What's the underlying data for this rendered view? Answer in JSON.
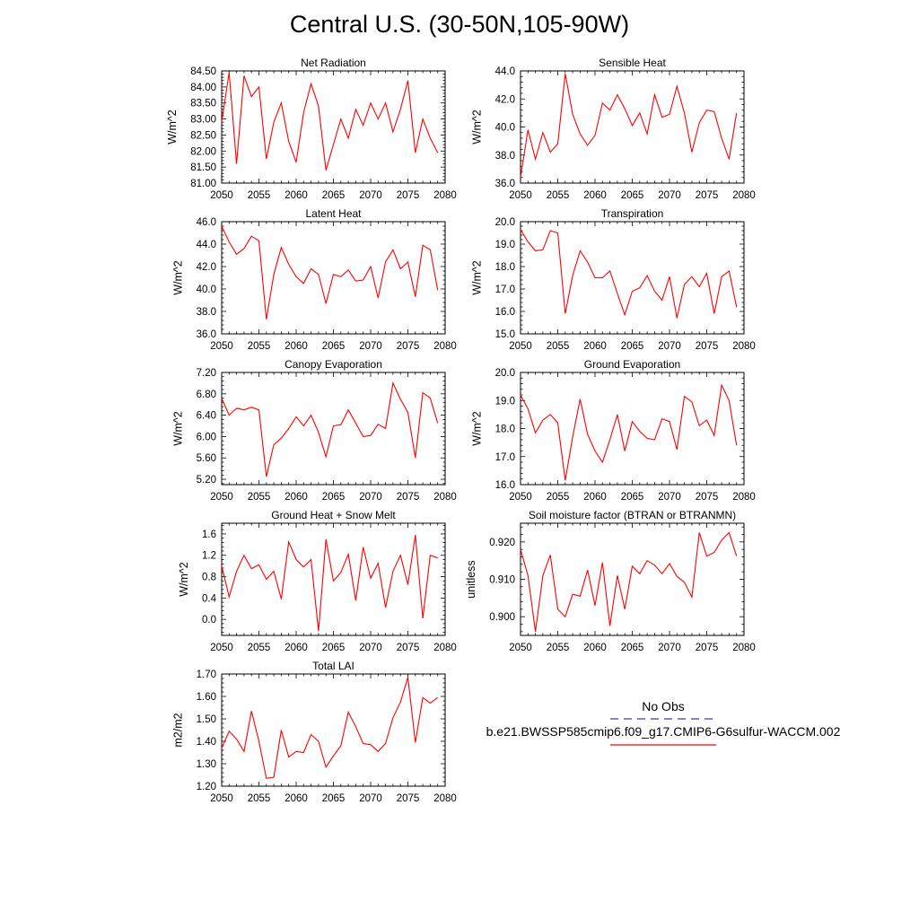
{
  "page": {
    "title": "Central U.S. (30-50N,105-90W)"
  },
  "legend": {
    "items": [
      {
        "label": "No Obs",
        "color": "#3b3bb8",
        "style": "dashed"
      },
      {
        "label": "b.e21.BWSSP585cmip6.f09_g17.CMIP6-G6sulfur-WACCM.002",
        "color": "#ff0000",
        "style": "solid"
      }
    ]
  },
  "chart_data": [
    {
      "type": "line",
      "title": "Net Radiation",
      "ylabel": "W/m^2",
      "xlim": [
        2050,
        2080
      ],
      "ylim": [
        81.0,
        84.5
      ],
      "xticks": [
        2050,
        2055,
        2060,
        2065,
        2070,
        2075,
        2080
      ],
      "yticks": [
        "81.00",
        "81.50",
        "82.00",
        "82.50",
        "83.00",
        "83.50",
        "84.00",
        "84.50"
      ],
      "series": [
        {
          "color": "#ff0000",
          "x": [
            2050,
            2051,
            2052,
            2053,
            2054,
            2055,
            2056,
            2057,
            2058,
            2059,
            2060,
            2061,
            2062,
            2063,
            2064,
            2065,
            2066,
            2067,
            2068,
            2069,
            2070,
            2071,
            2072,
            2073,
            2074,
            2075,
            2076,
            2077,
            2078,
            2079
          ],
          "y": [
            82.9,
            84.45,
            81.6,
            84.35,
            83.7,
            84.0,
            81.75,
            82.9,
            83.5,
            82.3,
            81.65,
            83.2,
            84.1,
            83.4,
            81.4,
            82.2,
            83.0,
            82.4,
            83.3,
            82.8,
            83.5,
            83.0,
            83.5,
            82.6,
            83.3,
            84.2,
            81.95,
            83.0,
            82.4,
            81.95
          ]
        }
      ]
    },
    {
      "type": "line",
      "title": "Sensible Heat",
      "ylabel": "W/m^2",
      "xlim": [
        2050,
        2080
      ],
      "ylim": [
        36.0,
        44.0
      ],
      "xticks": [
        2050,
        2055,
        2060,
        2065,
        2070,
        2075,
        2080
      ],
      "yticks": [
        "36.0",
        "38.0",
        "40.0",
        "42.0",
        "44.0"
      ],
      "series": [
        {
          "color": "#ff0000",
          "x": [
            2050,
            2051,
            2052,
            2053,
            2054,
            2055,
            2056,
            2057,
            2058,
            2059,
            2060,
            2061,
            2062,
            2063,
            2064,
            2065,
            2066,
            2067,
            2068,
            2069,
            2070,
            2071,
            2072,
            2073,
            2074,
            2075,
            2076,
            2077,
            2078,
            2079
          ],
          "y": [
            36.4,
            39.8,
            37.7,
            39.6,
            38.2,
            38.8,
            43.8,
            40.9,
            39.5,
            38.7,
            39.4,
            41.7,
            41.2,
            42.3,
            41.3,
            40.1,
            41.0,
            39.5,
            42.3,
            40.7,
            40.9,
            42.9,
            41.0,
            38.2,
            40.3,
            41.2,
            41.1,
            39.2,
            37.7,
            41.0
          ]
        }
      ]
    },
    {
      "type": "line",
      "title": "Latent Heat",
      "ylabel": "W/m^2",
      "xlim": [
        2050,
        2080
      ],
      "ylim": [
        36.0,
        46.0
      ],
      "xticks": [
        2050,
        2055,
        2060,
        2065,
        2070,
        2075,
        2080
      ],
      "yticks": [
        "36.0",
        "38.0",
        "40.0",
        "42.0",
        "44.0",
        "46.0"
      ],
      "series": [
        {
          "color": "#ff0000",
          "x": [
            2050,
            2051,
            2052,
            2053,
            2054,
            2055,
            2056,
            2057,
            2058,
            2059,
            2060,
            2061,
            2062,
            2063,
            2064,
            2065,
            2066,
            2067,
            2068,
            2069,
            2070,
            2071,
            2072,
            2073,
            2074,
            2075,
            2076,
            2077,
            2078,
            2079
          ],
          "y": [
            45.6,
            44.2,
            43.1,
            43.6,
            44.7,
            44.3,
            37.3,
            41.3,
            43.7,
            42.2,
            41.1,
            40.5,
            41.8,
            41.3,
            38.7,
            41.3,
            41.1,
            41.7,
            40.7,
            40.8,
            42.0,
            39.2,
            42.4,
            43.5,
            41.8,
            42.4,
            39.3,
            43.9,
            43.5,
            39.9
          ]
        }
      ]
    },
    {
      "type": "line",
      "title": "Transpiration",
      "ylabel": "W/m^2",
      "xlim": [
        2050,
        2080
      ],
      "ylim": [
        15.0,
        20.0
      ],
      "xticks": [
        2050,
        2055,
        2060,
        2065,
        2070,
        2075,
        2080
      ],
      "yticks": [
        "15.0",
        "16.0",
        "17.0",
        "18.0",
        "19.0",
        "20.0"
      ],
      "series": [
        {
          "color": "#ff0000",
          "x": [
            2050,
            2051,
            2052,
            2053,
            2054,
            2055,
            2056,
            2057,
            2058,
            2059,
            2060,
            2061,
            2062,
            2063,
            2064,
            2065,
            2066,
            2067,
            2068,
            2069,
            2070,
            2071,
            2072,
            2073,
            2074,
            2075,
            2076,
            2077,
            2078,
            2079
          ],
          "y": [
            19.65,
            19.1,
            18.7,
            18.75,
            19.6,
            19.5,
            15.9,
            17.6,
            18.7,
            18.2,
            17.5,
            17.5,
            17.8,
            16.8,
            15.85,
            16.9,
            17.05,
            17.6,
            16.9,
            16.5,
            17.55,
            15.7,
            17.2,
            17.55,
            17.1,
            17.7,
            15.9,
            17.55,
            17.8,
            16.2
          ]
        }
      ]
    },
    {
      "type": "line",
      "title": "Canopy Evaporation",
      "ylabel": "W/m^2",
      "xlim": [
        2050,
        2080
      ],
      "ylim": [
        5.1,
        7.2
      ],
      "xticks": [
        2050,
        2055,
        2060,
        2065,
        2070,
        2075,
        2080
      ],
      "yticks": [
        "5.20",
        "5.60",
        "6.00",
        "6.40",
        "6.80",
        "7.20"
      ],
      "series": [
        {
          "color": "#ff0000",
          "x": [
            2050,
            2051,
            2052,
            2053,
            2054,
            2055,
            2056,
            2057,
            2058,
            2059,
            2060,
            2061,
            2062,
            2063,
            2064,
            2065,
            2066,
            2067,
            2068,
            2069,
            2070,
            2071,
            2072,
            2073,
            2074,
            2075,
            2076,
            2077,
            2078,
            2079
          ],
          "y": [
            6.72,
            6.4,
            6.53,
            6.5,
            6.55,
            6.5,
            5.25,
            5.85,
            5.97,
            6.15,
            6.37,
            6.2,
            6.4,
            6.08,
            5.62,
            6.2,
            6.22,
            6.5,
            6.25,
            6.0,
            6.02,
            6.23,
            6.15,
            7.0,
            6.7,
            6.45,
            5.6,
            6.82,
            6.72,
            6.25
          ]
        }
      ]
    },
    {
      "type": "line",
      "title": "Ground Evaporation",
      "ylabel": "W/m^2",
      "xlim": [
        2050,
        2080
      ],
      "ylim": [
        16.0,
        20.0
      ],
      "xticks": [
        2050,
        2055,
        2060,
        2065,
        2070,
        2075,
        2080
      ],
      "yticks": [
        "16.0",
        "17.0",
        "18.0",
        "19.0",
        "20.0"
      ],
      "series": [
        {
          "color": "#ff0000",
          "x": [
            2050,
            2051,
            2052,
            2053,
            2054,
            2055,
            2056,
            2057,
            2058,
            2059,
            2060,
            2061,
            2062,
            2063,
            2064,
            2065,
            2066,
            2067,
            2068,
            2069,
            2070,
            2071,
            2072,
            2073,
            2074,
            2075,
            2076,
            2077,
            2078,
            2079
          ],
          "y": [
            19.2,
            18.7,
            17.85,
            18.3,
            18.5,
            18.2,
            16.15,
            17.7,
            19.05,
            17.8,
            17.2,
            16.8,
            17.6,
            18.5,
            17.2,
            18.25,
            17.9,
            17.65,
            17.6,
            18.35,
            18.25,
            17.25,
            19.15,
            18.95,
            18.1,
            18.3,
            17.75,
            19.55,
            19.0,
            17.4
          ]
        }
      ]
    },
    {
      "type": "line",
      "title": "Ground Heat + Snow Melt",
      "ylabel": "W/m^2",
      "xlim": [
        2050,
        2080
      ],
      "ylim": [
        -0.3,
        1.8
      ],
      "xticks": [
        2050,
        2055,
        2060,
        2065,
        2070,
        2075,
        2080
      ],
      "yticks": [
        "0.0",
        "0.4",
        "0.8",
        "1.2",
        "1.6"
      ],
      "series": [
        {
          "color": "#ff0000",
          "x": [
            2050,
            2051,
            2052,
            2053,
            2054,
            2055,
            2056,
            2057,
            2058,
            2059,
            2060,
            2061,
            2062,
            2063,
            2064,
            2065,
            2066,
            2067,
            2068,
            2069,
            2070,
            2071,
            2072,
            2073,
            2074,
            2075,
            2076,
            2077,
            2078,
            2079
          ],
          "y": [
            1.0,
            0.42,
            0.9,
            1.2,
            0.95,
            1.02,
            0.75,
            0.9,
            0.38,
            1.45,
            1.12,
            0.98,
            1.12,
            -0.22,
            1.5,
            0.72,
            0.88,
            1.22,
            0.35,
            1.35,
            0.77,
            1.05,
            0.22,
            0.9,
            1.2,
            0.65,
            1.58,
            0.02,
            1.2,
            1.15
          ]
        }
      ]
    },
    {
      "type": "line",
      "title": "Soil moisture factor (BTRAN or BTRANMN)",
      "ylabel": "unitless",
      "xlim": [
        2050,
        2080
      ],
      "ylim": [
        0.895,
        0.925
      ],
      "xticks": [
        2050,
        2055,
        2060,
        2065,
        2070,
        2075,
        2080
      ],
      "yticks": [
        "0.900",
        "0.910",
        "0.920"
      ],
      "series": [
        {
          "color": "#ff0000",
          "x": [
            2050,
            2051,
            2052,
            2053,
            2054,
            2055,
            2056,
            2057,
            2058,
            2059,
            2060,
            2061,
            2062,
            2063,
            2064,
            2065,
            2066,
            2067,
            2068,
            2069,
            2070,
            2071,
            2072,
            2073,
            2074,
            2075,
            2076,
            2077,
            2078,
            2079
          ],
          "y": [
            0.918,
            0.911,
            0.896,
            0.911,
            0.9165,
            0.902,
            0.9,
            0.906,
            0.9055,
            0.9125,
            0.903,
            0.9145,
            0.8975,
            0.911,
            0.902,
            0.9135,
            0.9115,
            0.915,
            0.9138,
            0.9115,
            0.9142,
            0.9108,
            0.9092,
            0.9052,
            0.9225,
            0.9162,
            0.9172,
            0.9205,
            0.9225,
            0.9162
          ]
        }
      ]
    },
    {
      "type": "line",
      "title": "Total LAI",
      "ylabel": "m2/m2",
      "xlim": [
        2050,
        2080
      ],
      "ylim": [
        1.2,
        1.7
      ],
      "xticks": [
        2050,
        2055,
        2060,
        2065,
        2070,
        2075,
        2080
      ],
      "yticks": [
        "1.20",
        "1.30",
        "1.40",
        "1.50",
        "1.60",
        "1.70"
      ],
      "series": [
        {
          "color": "#ff0000",
          "x": [
            2050,
            2051,
            2052,
            2053,
            2054,
            2055,
            2056,
            2057,
            2058,
            2059,
            2060,
            2061,
            2062,
            2063,
            2064,
            2065,
            2066,
            2067,
            2068,
            2069,
            2070,
            2071,
            2072,
            2073,
            2074,
            2075,
            2076,
            2077,
            2078,
            2079
          ],
          "y": [
            1.37,
            1.445,
            1.41,
            1.355,
            1.535,
            1.4,
            1.235,
            1.24,
            1.45,
            1.33,
            1.355,
            1.35,
            1.43,
            1.4,
            1.285,
            1.335,
            1.38,
            1.53,
            1.465,
            1.39,
            1.385,
            1.355,
            1.39,
            1.505,
            1.575,
            1.685,
            1.395,
            1.595,
            1.57,
            1.595
          ]
        }
      ]
    }
  ]
}
